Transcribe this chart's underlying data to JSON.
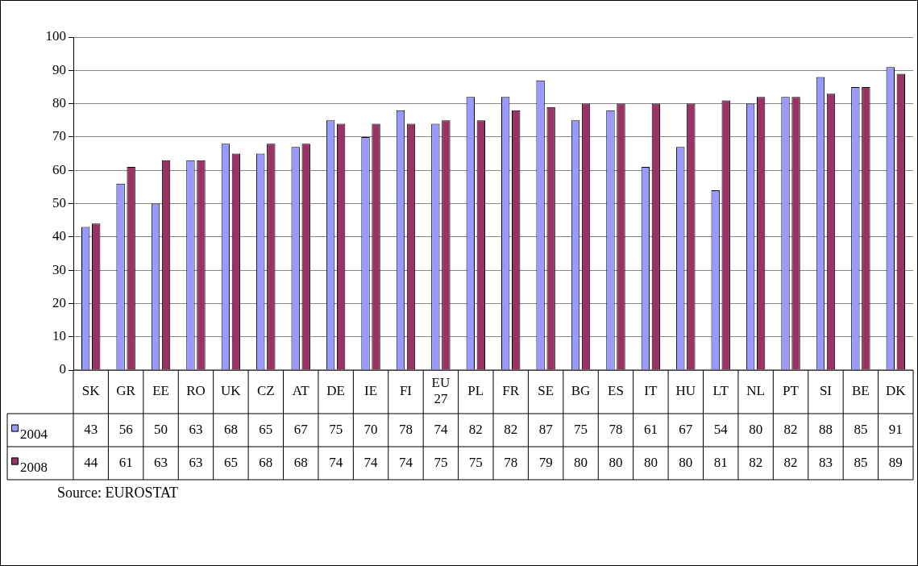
{
  "chart_data": {
    "type": "bar",
    "categories": [
      "SK",
      "GR",
      "EE",
      "RO",
      "UK",
      "CZ",
      "AT",
      "DE",
      "IE",
      "FI",
      "EU 27",
      "PL",
      "FR",
      "SE",
      "BG",
      "ES",
      "IT",
      "HU",
      "LT",
      "NL",
      "PT",
      "SI",
      "BE",
      "DK"
    ],
    "series": [
      {
        "name": "2004",
        "color": "#9999ff",
        "values": [
          43,
          56,
          50,
          63,
          68,
          65,
          67,
          75,
          70,
          78,
          74,
          82,
          82,
          87,
          75,
          78,
          61,
          67,
          54,
          80,
          82,
          88,
          85,
          91
        ]
      },
      {
        "name": "2008",
        "color": "#993366",
        "values": [
          44,
          61,
          63,
          63,
          65,
          68,
          68,
          74,
          74,
          74,
          75,
          75,
          78,
          79,
          80,
          80,
          80,
          80,
          81,
          82,
          82,
          83,
          85,
          89
        ]
      }
    ],
    "ylim": [
      0,
      100
    ],
    "yticks": [
      0,
      10,
      20,
      30,
      40,
      50,
      60,
      70,
      80,
      90,
      100
    ],
    "grid": "y",
    "legend": "bottom",
    "data_labels": true,
    "annotations": [
      "Source: EUROSTAT"
    ]
  }
}
